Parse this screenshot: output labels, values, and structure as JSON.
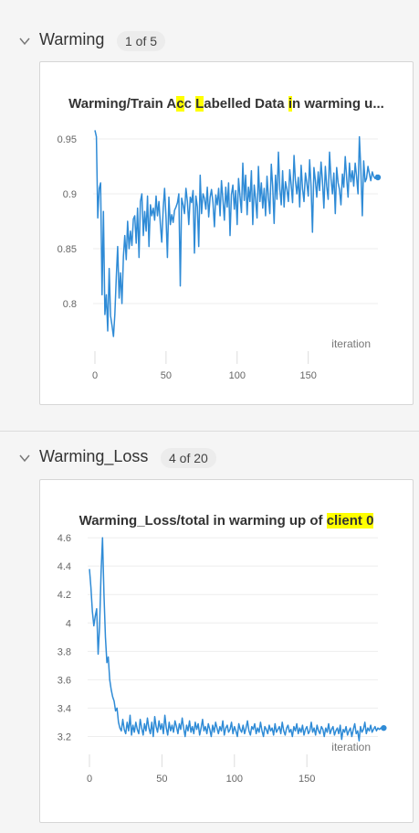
{
  "sections": [
    {
      "title": "Warming",
      "count": "1 of 5",
      "chart_title_parts": [
        {
          "text": "Warming/Train A",
          "hl": false
        },
        {
          "text": "c",
          "hl": true
        },
        {
          "text": "c ",
          "hl": false
        },
        {
          "text": "L",
          "hl": true
        },
        {
          "text": "abelled Data ",
          "hl": false
        },
        {
          "text": "i",
          "hl": true
        },
        {
          "text": "n warming u...",
          "hl": false
        }
      ]
    },
    {
      "title": "Warming_Loss",
      "count": "4 of 20",
      "chart_title_parts": [
        {
          "text": "Warming_Loss/total in warming up of ",
          "hl": false
        },
        {
          "text": "client 0",
          "hl": true
        }
      ]
    }
  ],
  "colors": {
    "line": "#2f8bd6",
    "grid": "#eeeeee",
    "highlight": "#ffff00"
  },
  "chart_data": [
    {
      "type": "line",
      "title": "Warming/Train Acc Labelled Data in warming u...",
      "xlabel": "iteration",
      "ylabel": "",
      "xlim": [
        0,
        199
      ],
      "ylim": [
        0.76,
        0.96
      ],
      "x_ticks": [
        0,
        50,
        100,
        150
      ],
      "y_ticks": [
        0.8,
        0.85,
        0.9,
        0.95
      ],
      "y_tick_labels": [
        "0.8",
        "0.85",
        "0.9",
        "0.95"
      ],
      "grid": true,
      "x_start": 0,
      "values": [
        0.958,
        0.952,
        0.878,
        0.905,
        0.91,
        0.808,
        0.884,
        0.79,
        0.808,
        0.775,
        0.832,
        0.789,
        0.78,
        0.77,
        0.79,
        0.824,
        0.852,
        0.805,
        0.828,
        0.8,
        0.843,
        0.862,
        0.84,
        0.875,
        0.85,
        0.866,
        0.853,
        0.877,
        0.88,
        0.855,
        0.887,
        0.842,
        0.893,
        0.9,
        0.862,
        0.884,
        0.866,
        0.898,
        0.852,
        0.89,
        0.88,
        0.887,
        0.876,
        0.898,
        0.88,
        0.893,
        0.872,
        0.856,
        0.887,
        0.905,
        0.878,
        0.842,
        0.897,
        0.872,
        0.881,
        0.874,
        0.885,
        0.888,
        0.892,
        0.9,
        0.816,
        0.896,
        0.89,
        0.882,
        0.905,
        0.893,
        0.872,
        0.897,
        0.892,
        0.903,
        0.846,
        0.898,
        0.888,
        0.852,
        0.917,
        0.882,
        0.9,
        0.896,
        0.886,
        0.906,
        0.879,
        0.897,
        0.904,
        0.892,
        0.87,
        0.899,
        0.89,
        0.905,
        0.88,
        0.912,
        0.895,
        0.876,
        0.906,
        0.888,
        0.91,
        0.862,
        0.899,
        0.908,
        0.886,
        0.903,
        0.872,
        0.914,
        0.898,
        0.883,
        0.928,
        0.894,
        0.917,
        0.881,
        0.906,
        0.893,
        0.921,
        0.872,
        0.908,
        0.895,
        0.878,
        0.925,
        0.893,
        0.91,
        0.887,
        0.905,
        0.88,
        0.916,
        0.896,
        0.882,
        0.927,
        0.907,
        0.873,
        0.917,
        0.895,
        0.938,
        0.905,
        0.89,
        0.921,
        0.888,
        0.911,
        0.904,
        0.893,
        0.922,
        0.908,
        0.892,
        0.935,
        0.912,
        0.9,
        0.915,
        0.888,
        0.926,
        0.905,
        0.893,
        0.919,
        0.91,
        0.898,
        0.931,
        0.906,
        0.865,
        0.924,
        0.912,
        0.897,
        0.92,
        0.903,
        0.929,
        0.912,
        0.887,
        0.925,
        0.907,
        0.895,
        0.938,
        0.914,
        0.9,
        0.919,
        0.882,
        0.924,
        0.91,
        0.904,
        0.89,
        0.918,
        0.906,
        0.934,
        0.915,
        0.897,
        0.928,
        0.911,
        0.921,
        0.907,
        0.928,
        0.916,
        0.9,
        0.952,
        0.922,
        0.88,
        0.93,
        0.911,
        0.914,
        0.925,
        0.918,
        0.912,
        0.92,
        0.916,
        0.914,
        0.917,
        0.915
      ],
      "marker_last": true
    },
    {
      "type": "line",
      "title": "Warming_Loss/total in warming up of client 0",
      "xlabel": "iteration",
      "ylabel": "",
      "xlim": [
        0,
        199
      ],
      "ylim": [
        3.1,
        4.62
      ],
      "x_ticks": [
        0,
        50,
        100,
        150
      ],
      "y_ticks": [
        3.2,
        3.4,
        3.6,
        3.8,
        4,
        4.2,
        4.4,
        4.6
      ],
      "y_tick_labels": [
        "3.2",
        "3.4",
        "3.6",
        "3.8",
        "4",
        "4.2",
        "4.4",
        "4.6"
      ],
      "grid": true,
      "x_start": 0,
      "values": [
        4.38,
        4.25,
        4.08,
        3.98,
        4.05,
        4.1,
        3.78,
        3.98,
        4.35,
        4.6,
        4.2,
        3.9,
        3.72,
        3.76,
        3.6,
        3.53,
        3.48,
        3.45,
        3.38,
        3.4,
        3.3,
        3.26,
        3.24,
        3.32,
        3.25,
        3.22,
        3.3,
        3.24,
        3.35,
        3.21,
        3.28,
        3.23,
        3.3,
        3.25,
        3.22,
        3.32,
        3.26,
        3.21,
        3.29,
        3.24,
        3.33,
        3.26,
        3.22,
        3.3,
        3.2,
        3.34,
        3.27,
        3.23,
        3.31,
        3.25,
        3.29,
        3.22,
        3.35,
        3.26,
        3.21,
        3.3,
        3.24,
        3.28,
        3.23,
        3.31,
        3.27,
        3.22,
        3.29,
        3.25,
        3.33,
        3.26,
        3.2,
        3.28,
        3.24,
        3.31,
        3.23,
        3.27,
        3.22,
        3.3,
        3.25,
        3.29,
        3.21,
        3.26,
        3.32,
        3.24,
        3.27,
        3.22,
        3.29,
        3.25,
        3.2,
        3.28,
        3.23,
        3.3,
        3.26,
        3.22,
        3.27,
        3.24,
        3.31,
        3.21,
        3.26,
        3.28,
        3.23,
        3.25,
        3.3,
        3.22,
        3.27,
        3.24,
        3.2,
        3.29,
        3.25,
        3.23,
        3.28,
        3.22,
        3.26,
        3.31,
        3.24,
        3.21,
        3.27,
        3.25,
        3.29,
        3.22,
        3.26,
        3.23,
        3.3,
        3.24,
        3.2,
        3.27,
        3.25,
        3.22,
        3.28,
        3.24,
        3.26,
        3.21,
        3.29,
        3.23,
        3.25,
        3.27,
        3.22,
        3.3,
        3.24,
        3.21,
        3.26,
        3.28,
        3.23,
        3.25,
        3.2,
        3.27,
        3.24,
        3.29,
        3.22,
        3.26,
        3.23,
        3.28,
        3.21,
        3.25,
        3.27,
        3.22,
        3.24,
        3.3,
        3.23,
        3.26,
        3.21,
        3.28,
        3.24,
        3.22,
        3.27,
        3.25,
        3.2,
        3.26,
        3.23,
        3.29,
        3.22,
        3.25,
        3.27,
        3.21,
        3.24,
        3.26,
        3.22,
        3.28,
        3.18,
        3.25,
        3.23,
        3.27,
        3.21,
        3.24,
        3.26,
        3.2,
        3.25,
        3.29,
        3.22,
        3.24,
        3.17,
        3.27,
        3.23,
        3.25,
        3.3,
        3.22,
        3.26,
        3.24,
        3.28,
        3.23,
        3.25,
        3.27,
        3.24,
        3.26,
        3.25,
        3.26,
        3.25,
        3.26
      ],
      "marker_last": true
    }
  ]
}
